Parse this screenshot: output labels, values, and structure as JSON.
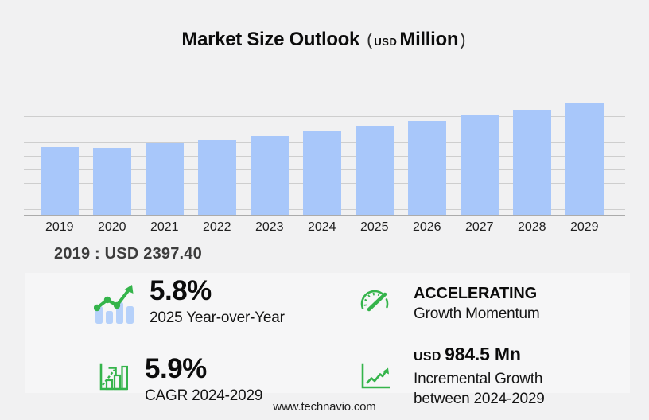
{
  "title": {
    "main": "Market Size Outlook",
    "paren_open": "(",
    "currency": "USD",
    "unit": "Million",
    "paren_close": ")"
  },
  "chart_data": {
    "type": "bar",
    "title": "Market Size Outlook (USD Million)",
    "xlabel": "",
    "ylabel": "USD Million",
    "categories": [
      "2019",
      "2020",
      "2021",
      "2022",
      "2023",
      "2024",
      "2025",
      "2026",
      "2027",
      "2028",
      "2029"
    ],
    "values": [
      2397.4,
      2365,
      2545,
      2670,
      2810,
      2967,
      3139,
      3325,
      3521,
      3728,
      3951.5
    ],
    "ylim": [
      0,
      4520
    ],
    "grid": true,
    "gridline_count": 9,
    "legend": "none",
    "bar_color": "#a8c7fa"
  },
  "annotation_2019": {
    "label": "2019 : USD 2397.40"
  },
  "stats": {
    "yoy": {
      "icon": "bar-chart-trend-icon",
      "value": "5.8%",
      "label": "2025 Year-over-Year"
    },
    "momentum": {
      "icon": "speedometer-icon",
      "value": "ACCELERATING",
      "label": "Growth Momentum"
    },
    "cagr": {
      "icon": "bar-growth-arrow-icon",
      "value": "5.9%",
      "label": "CAGR 2024-2029"
    },
    "incremental": {
      "icon": "line-growth-axes-icon",
      "currency": "USD",
      "value": "984.5 Mn",
      "label_line1": "Incremental Growth",
      "label_line2": "between 2024-2029"
    }
  },
  "footer": {
    "website": "www.technavio.com"
  },
  "colors": {
    "background": "#f1f1f2",
    "panel": "#f6f6f7",
    "bar_blue": "#a8c7fa",
    "accent_green": "#35b44b",
    "grid_line": "#cecece",
    "axis_line": "#ababab",
    "text_dark": "#0c0c0c",
    "text_gray": "#3c3c3c"
  }
}
